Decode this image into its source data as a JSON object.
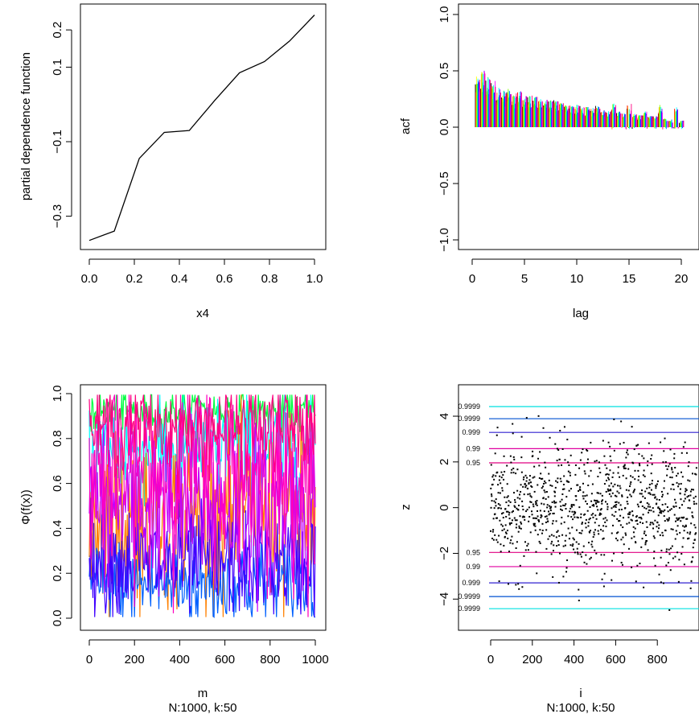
{
  "chart_data": [
    {
      "type": "line",
      "xlabel": "x4",
      "ylabel": "partial dependence function",
      "xlim": [
        0,
        1
      ],
      "ylim": [
        -0.37,
        0.25
      ],
      "xticks": [
        "0.0",
        "0.2",
        "0.4",
        "0.6",
        "0.8",
        "1.0"
      ],
      "yticks": [
        "-0.3",
        "-0.1",
        "0.1",
        "0.2"
      ],
      "series": [
        {
          "x": [
            0.0,
            0.111,
            0.222,
            0.333,
            0.444,
            0.556,
            0.667,
            0.778,
            0.889,
            1.0
          ],
          "values": [
            -0.365,
            -0.34,
            -0.145,
            -0.075,
            -0.07,
            0.01,
            0.085,
            0.115,
            0.17,
            0.24
          ]
        }
      ],
      "grid": false
    },
    {
      "type": "bar",
      "xlabel": "lag",
      "ylabel": "acf",
      "xlim": [
        0,
        20
      ],
      "ylim": [
        -1.0,
        1.0
      ],
      "xticks": [
        "0",
        "5",
        "10",
        "15",
        "20"
      ],
      "yticks": [
        "-1.0",
        "-0.5",
        "0.0",
        "0.5",
        "1.0"
      ],
      "lags": [
        0.5,
        1,
        1.5,
        2,
        2.5,
        3,
        3.5,
        4,
        4.5,
        5,
        5.5,
        6,
        6.5,
        7,
        7.5,
        8,
        8.5,
        9,
        9.5,
        10,
        10.5,
        11,
        11.5,
        12,
        12.5,
        13,
        13.5,
        14,
        14.5,
        15,
        15.5,
        16,
        16.5,
        17,
        17.5,
        18,
        18.5,
        19,
        19.5,
        20
      ],
      "series_colors": [
        "#000000",
        "#ff0000",
        "#ff8000",
        "#ffff00",
        "#80ff00",
        "#00ff00",
        "#00ff80",
        "#00ffff",
        "#0080ff",
        "#0000ff",
        "#8000ff",
        "#ff00ff",
        "#ff0080"
      ],
      "envelope": [
        0.45,
        0.52,
        0.45,
        0.42,
        0.36,
        0.33,
        0.34,
        0.3,
        0.33,
        0.28,
        0.29,
        0.27,
        0.26,
        0.25,
        0.24,
        0.24,
        0.22,
        0.21,
        0.2,
        0.2,
        0.19,
        0.18,
        0.17,
        0.19,
        0.16,
        0.15,
        0.21,
        0.14,
        0.13,
        0.21,
        0.12,
        0.11,
        0.14,
        0.1,
        0.1,
        0.2,
        0.08,
        0.07,
        0.18,
        0.06
      ],
      "grid": false
    },
    {
      "type": "line",
      "xlabel": "m",
      "caption": "N:1000, k:50",
      "ylabel": "Φ(f(x))",
      "xlim": [
        0,
        1000
      ],
      "ylim": [
        0.0,
        1.0
      ],
      "xticks": [
        "0",
        "200",
        "400",
        "600",
        "800",
        "1000"
      ],
      "yticks": [
        "0.0",
        "0.2",
        "0.4",
        "0.6",
        "0.8",
        "1.0"
      ],
      "series_colors": [
        "#00ff40",
        "#00ffff",
        "#ff8000",
        "#0060ff",
        "#4000ff",
        "#c000ff",
        "#ff00c0",
        "#ff0080"
      ],
      "note": "50 MCMC trace series between approximately 0.0 and 1.0",
      "grid": false
    },
    {
      "type": "scatter",
      "xlabel": "i",
      "caption": "N:1000, k:50",
      "ylabel": "z",
      "xlim": [
        0,
        1000
      ],
      "ylim": [
        -4.8,
        4.6
      ],
      "xticks": [
        "0",
        "200",
        "400",
        "600",
        "800"
      ],
      "yticks": [
        "-4",
        "-2",
        "0",
        "2",
        "4"
      ],
      "hlines": [
        {
          "label": "0.9999",
          "y": 4.42,
          "color": "#00e0e0"
        },
        {
          "label": "0.9999",
          "y": 3.89,
          "color": "#0050d0"
        },
        {
          "label": "0.999",
          "y": 3.29,
          "color": "#3020d0"
        },
        {
          "label": "0.99",
          "y": 2.58,
          "color": "#e000a0"
        },
        {
          "label": "0.95",
          "y": 1.96,
          "color": "#e00080"
        },
        {
          "label": "0.95",
          "y": -1.96,
          "color": "#e00080"
        },
        {
          "label": "0.99",
          "y": -2.58,
          "color": "#e000a0"
        },
        {
          "label": "0.999",
          "y": -3.29,
          "color": "#3020d0"
        },
        {
          "label": "0.9999",
          "y": -3.89,
          "color": "#0050d0"
        },
        {
          "label": "0.9999",
          "y": -4.42,
          "color": "#00e0e0"
        }
      ],
      "n_points": 1000,
      "grid": false
    }
  ]
}
